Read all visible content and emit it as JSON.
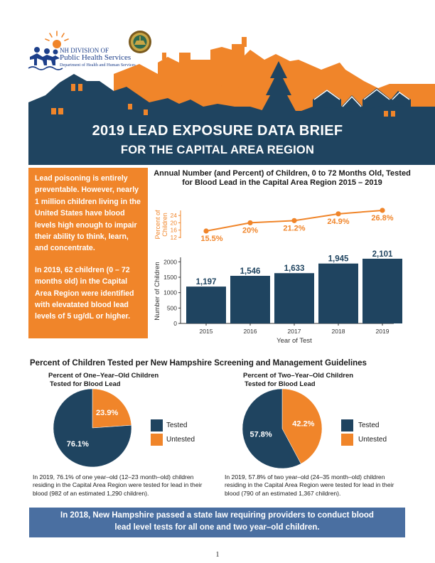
{
  "org": {
    "line1": "NH DIVISION OF",
    "line2": "Public Health Services",
    "line3": "Department of Health and Human Services"
  },
  "header": {
    "title": "2019 LEAD EXPOSURE DATA BRIEF",
    "subtitle": "FOR THE CAPITAL AREA REGION"
  },
  "callout": {
    "para1": "Lead poisoning is entirely preventable. However, nearly 1 million children living in the United States have blood levels high enough to impair their ability to think, learn, and concentrate.",
    "para2": "In 2019, 62 children (0 – 72 months old) in the Capital Area Region were identified with elevatated blood lead levels of 5 ug/dL or higher."
  },
  "colors": {
    "navy": "#1f4460",
    "orange": "#f0852a",
    "banner": "#4a6fa1"
  },
  "chart_data": [
    {
      "type": "line",
      "title": "Annual Number (and Percent) of Children, 0 to 72 Months Old, Tested for Blood Lead in the Capital Area Region 2015 – 2019",
      "x": [
        "2015",
        "2016",
        "2017",
        "2018",
        "2019"
      ],
      "values": [
        15.5,
        20,
        21.2,
        24.9,
        26.8
      ],
      "labels": [
        "15.5%",
        "20%",
        "21.2%",
        "24.9%",
        "26.8%"
      ],
      "ylabel": "Percent of Children",
      "ylim": [
        12,
        26
      ],
      "yticks": [
        "12",
        "16",
        "20",
        "24"
      ],
      "color": "#f0852a"
    },
    {
      "type": "bar",
      "categories": [
        "2015",
        "2016",
        "2017",
        "2018",
        "2019"
      ],
      "values": [
        1197,
        1546,
        1633,
        1945,
        2101
      ],
      "labels": [
        "1,197",
        "1,546",
        "1,633",
        "1,945",
        "2,101"
      ],
      "xlabel": "Year of Test",
      "ylabel": "Number of Children",
      "ylim": [
        0,
        2100
      ],
      "yticks": [
        "0",
        "500",
        "1000",
        "1500",
        "2000"
      ],
      "color": "#1f4460"
    },
    {
      "type": "pie",
      "title": "Percent of One–Year–Old Children Tested for Blood Lead",
      "slices": [
        {
          "name": "Tested",
          "value": 76.1,
          "label": "76.1%",
          "color": "#1f4460"
        },
        {
          "name": "Untested",
          "value": 23.9,
          "label": "23.9%",
          "color": "#f0852a"
        }
      ]
    },
    {
      "type": "pie",
      "title": "Percent of Two–Year–Old Children Tested for Blood Lead",
      "slices": [
        {
          "name": "Tested",
          "value": 57.8,
          "label": "57.8%",
          "color": "#1f4460"
        },
        {
          "name": "Untested",
          "value": 42.2,
          "label": "42.2%",
          "color": "#f0852a"
        }
      ]
    }
  ],
  "guidelines": {
    "section_title": "Percent of Children Tested per New Hampshire Screening and Management Guidelines",
    "one_year": {
      "title_line1": "Percent of One–Year–Old Children",
      "title_line2": "Tested for Blood Lead",
      "legend_tested": "Tested",
      "legend_untested": "Untested",
      "caption": "In 2019, 76.1% of one year–old (12–23 month–old) children residing in the Capital Area Region were tested for lead in their blood (982 of an estimated 1,290 children)."
    },
    "two_year": {
      "title_line1": "Percent of Two–Year–Old Children",
      "title_line2": "Tested for Blood Lead",
      "legend_tested": "Tested",
      "legend_untested": "Untested",
      "caption": "In 2019, 57.8% of two year–old (24–35 month–old) children residing in the Capital Area Region were tested for lead in their blood (790 of an estimated 1,367 children)."
    }
  },
  "banner": {
    "line1": "In 2018, New Hampshire passed a state law requiring providers to conduct blood",
    "line2": "lead level tests for all one and two year–old children."
  },
  "page_number": "1"
}
